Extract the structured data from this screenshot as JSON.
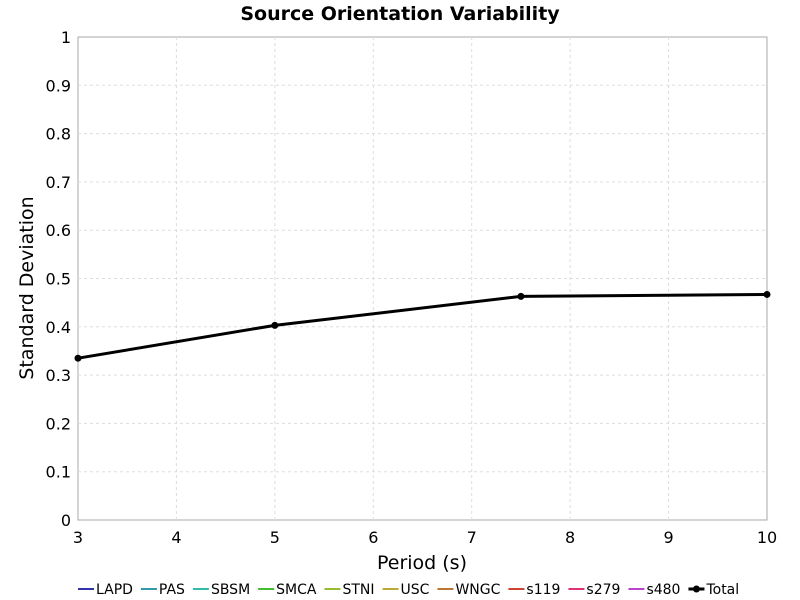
{
  "chart_data": {
    "type": "line",
    "title": "Source Orientation Variability",
    "xlabel": "Period (s)",
    "ylabel": "Standard Deviation",
    "xlim": [
      3,
      10
    ],
    "ylim": [
      0,
      1
    ],
    "x_ticks": [
      "3",
      "4",
      "5",
      "6",
      "7",
      "8",
      "9",
      "10"
    ],
    "y_ticks": [
      "0",
      "0.1",
      "0.2",
      "0.3",
      "0.4",
      "0.5",
      "0.6",
      "0.7",
      "0.8",
      "0.9",
      "1"
    ],
    "grid": true,
    "legend_position": "bottom",
    "series": [
      {
        "name": "LAPD",
        "color": "#3333aa",
        "x": [],
        "y": []
      },
      {
        "name": "PAS",
        "color": "#3399aa",
        "x": [],
        "y": []
      },
      {
        "name": "SBSM",
        "color": "#33bbaa",
        "x": [],
        "y": []
      },
      {
        "name": "SMCA",
        "color": "#44bb33",
        "x": [],
        "y": []
      },
      {
        "name": "STNI",
        "color": "#99bb33",
        "x": [],
        "y": []
      },
      {
        "name": "USC",
        "color": "#bbaa33",
        "x": [],
        "y": []
      },
      {
        "name": "WNGC",
        "color": "#bb7733",
        "x": [],
        "y": []
      },
      {
        "name": "s119",
        "color": "#cc4433",
        "x": [],
        "y": []
      },
      {
        "name": "s279",
        "color": "#dd3377",
        "x": [],
        "y": []
      },
      {
        "name": "s480",
        "color": "#bb44cc",
        "x": [],
        "y": []
      },
      {
        "name": "Total",
        "color": "#000000",
        "x": [
          3,
          5,
          7.5,
          10
        ],
        "y": [
          0.335,
          0.403,
          0.463,
          0.467
        ],
        "markers": true
      }
    ]
  }
}
